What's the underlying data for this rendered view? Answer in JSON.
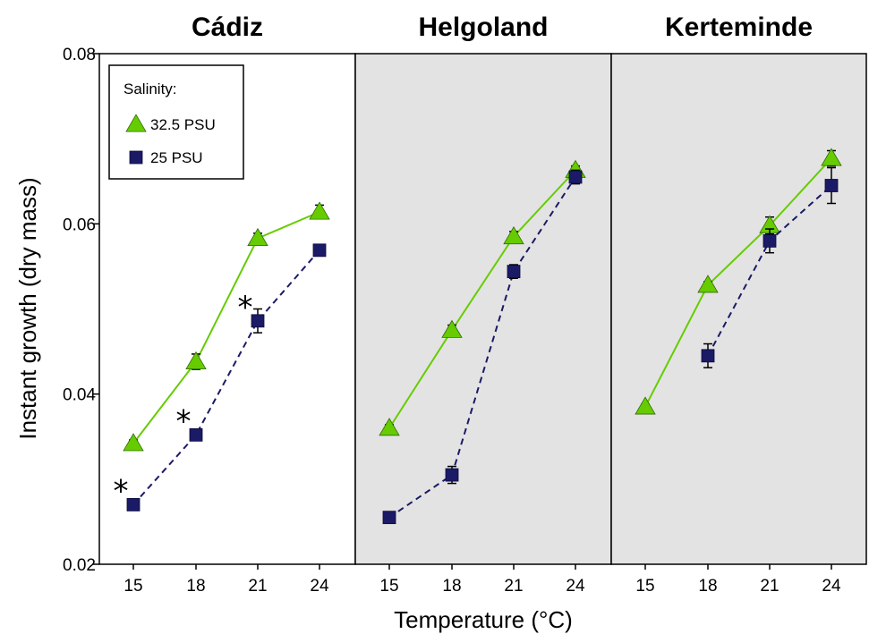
{
  "chart_data": {
    "type": "line",
    "ylabel": "Instant growth (dry mass)",
    "xlabel": "Temperature (°C)",
    "ylim": [
      0.02,
      0.08
    ],
    "yticks": [
      0.02,
      0.04,
      0.06,
      0.08
    ],
    "ytick_labels": [
      "0.02",
      "0.04",
      "0.06",
      "0.08"
    ],
    "categories": [
      15,
      18,
      21,
      24
    ],
    "legend": {
      "title": "Salinity:",
      "placement": "top-left",
      "entries": [
        "32.5 PSU",
        "25 PSU"
      ]
    },
    "colors": {
      "s32": "#66CC00",
      "s25": "#1A1A66",
      "panel_bg_shaded": "#E3E3E3"
    },
    "panels": [
      {
        "title": "Cádiz",
        "shaded": false,
        "series": [
          {
            "name": "32.5 PSU",
            "values": [
              0.0342,
              0.0438,
              0.0583,
              0.0614
            ],
            "errors": [
              0.0004,
              0.0009,
              0.0006,
              0.0008
            ]
          },
          {
            "name": "25 PSU",
            "values": [
              0.027,
              0.0352,
              0.0486,
              0.0569
            ],
            "errors": [
              0.0004,
              0.0004,
              0.0014,
              0.0006
            ]
          }
        ],
        "annotations": [
          {
            "text": "*",
            "x": 15
          },
          {
            "text": "*",
            "x": 18
          },
          {
            "text": "*",
            "x": 21
          }
        ]
      },
      {
        "title": "Helgoland",
        "shaded": true,
        "series": [
          {
            "name": "32.5 PSU",
            "values": [
              0.036,
              0.0475,
              0.0585,
              0.0663
            ],
            "errors": [
              0.0004,
              0.0006,
              0.0006,
              0.0005
            ]
          },
          {
            "name": "25 PSU",
            "values": [
              0.0255,
              0.0305,
              0.0544,
              0.0655
            ],
            "errors": [
              0.0006,
              0.001,
              0.0008,
              0.0008
            ]
          }
        ],
        "annotations": []
      },
      {
        "title": "Kerteminde",
        "shaded": true,
        "series": [
          {
            "name": "32.5 PSU",
            "values": [
              0.0385,
              0.0528,
              0.0598,
              0.0677
            ],
            "errors": [
              0.0003,
              0.0004,
              0.001,
              0.0009
            ]
          },
          {
            "name": "25 PSU",
            "values": [
              null,
              0.0445,
              0.058,
              0.0645
            ],
            "errors": [
              null,
              0.0014,
              0.0014,
              0.0021
            ]
          }
        ],
        "annotations": []
      }
    ]
  }
}
